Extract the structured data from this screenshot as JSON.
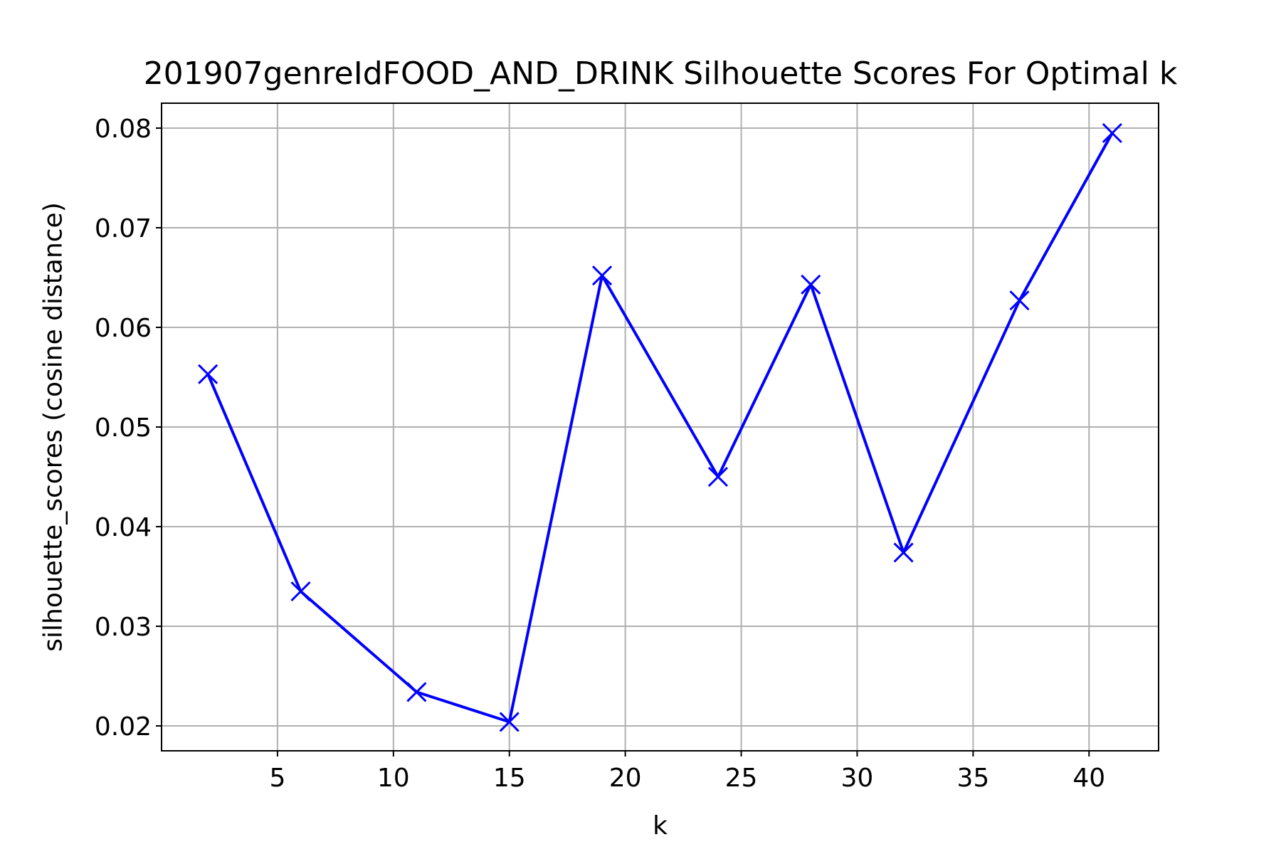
{
  "chart_data": {
    "type": "line",
    "title": "201907genreIdFOOD_AND_DRINK Silhouette Scores For Optimal k",
    "xlabel": "k",
    "ylabel": "silhouette_scores (cosine distance)",
    "xlim": [
      0,
      43
    ],
    "ylim": [
      0.0175,
      0.0825
    ],
    "x_ticks": [
      5,
      10,
      15,
      20,
      25,
      30,
      35,
      40
    ],
    "y_ticks": [
      0.02,
      0.03,
      0.04,
      0.05,
      0.06,
      0.07,
      0.08
    ],
    "y_tick_labels": [
      "0.02",
      "0.03",
      "0.04",
      "0.05",
      "0.06",
      "0.07",
      "0.08"
    ],
    "grid": true,
    "marker": "x",
    "color": "#0000ff",
    "x": [
      2,
      6,
      11,
      15,
      19,
      24,
      28,
      32,
      37,
      41
    ],
    "y": [
      0.0553,
      0.0335,
      0.0234,
      0.0204,
      0.0652,
      0.045,
      0.0643,
      0.0374,
      0.0627,
      0.0795
    ]
  }
}
